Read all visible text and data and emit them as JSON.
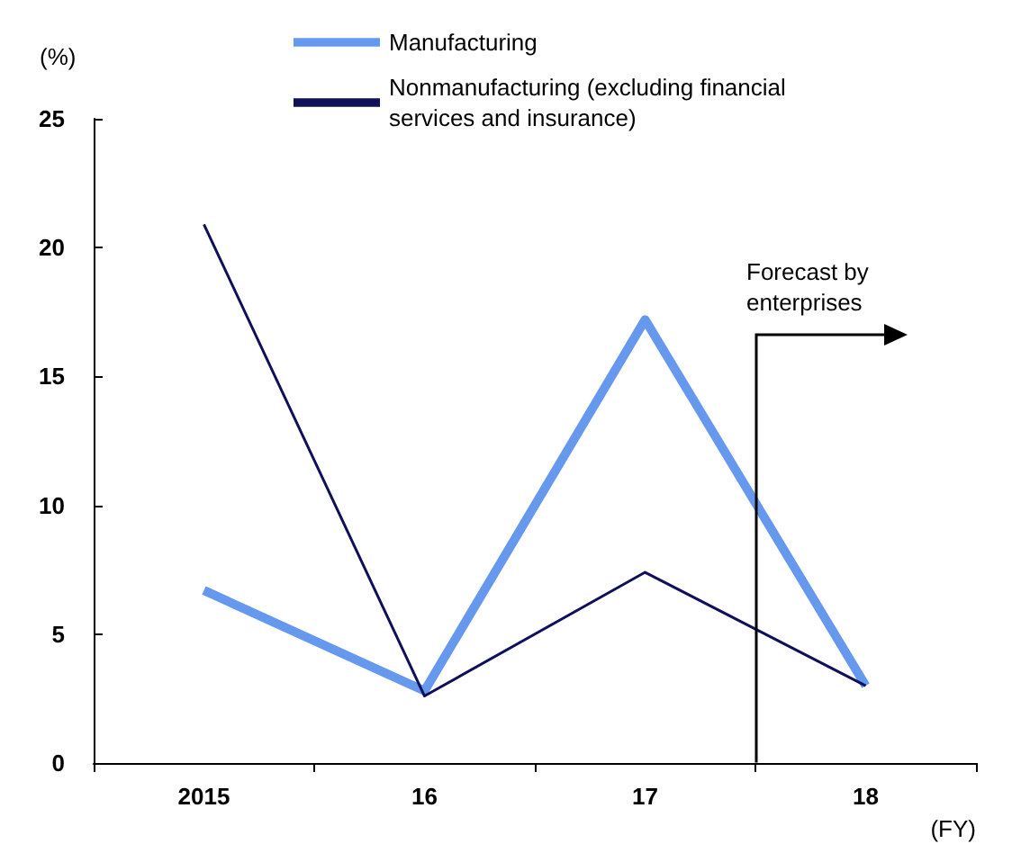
{
  "chart_data": {
    "type": "line",
    "categories": [
      "2015",
      "16",
      "17",
      "18"
    ],
    "series": [
      {
        "name": "Manufacturing",
        "color": "#6699ee",
        "values": [
          6.7,
          2.8,
          17.2,
          3.0
        ]
      },
      {
        "name": "Nonmanufacturing (excluding financial services and insurance)",
        "color": "#10105a",
        "values": [
          20.9,
          2.6,
          7.4,
          3.0
        ]
      }
    ],
    "ylabel": "(%)",
    "xlabel": "(FY)",
    "ylim": [
      0,
      25
    ],
    "yticks": [
      0,
      5,
      10,
      15,
      20,
      25
    ],
    "grid": false,
    "legend": "top",
    "marker": "none",
    "annotations": [
      "Forecast by\nenterprises"
    ]
  }
}
